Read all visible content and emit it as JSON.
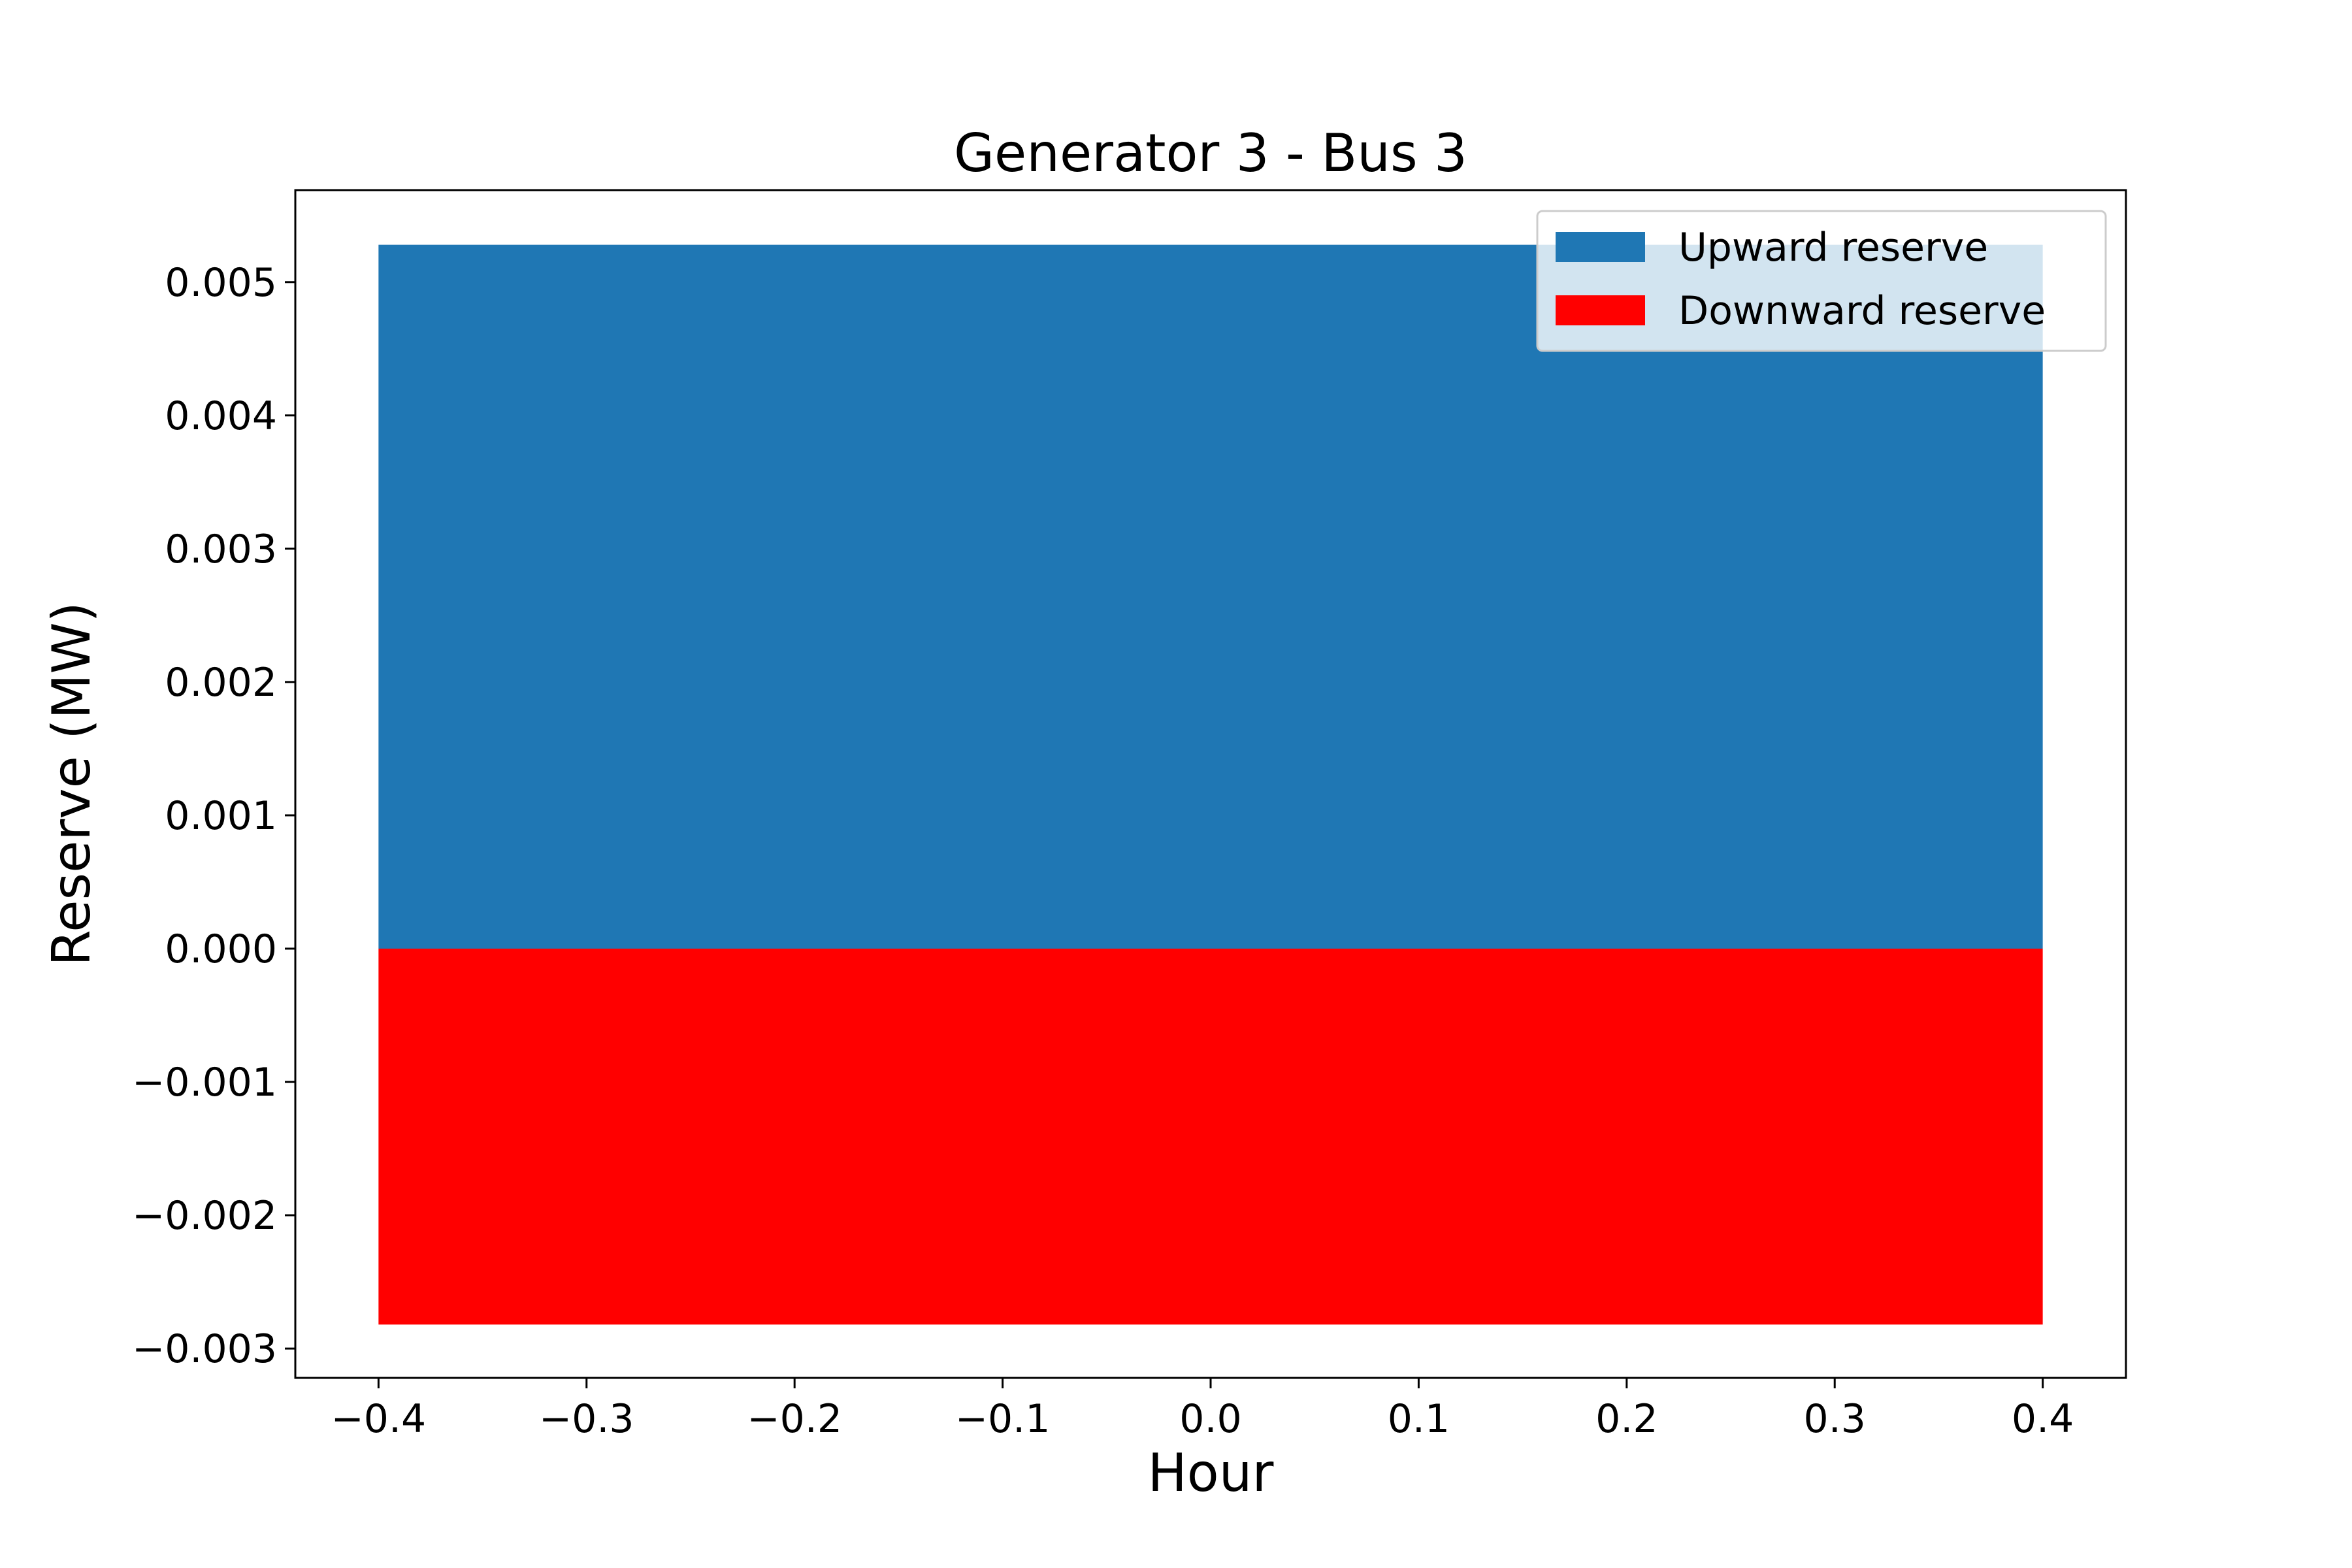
{
  "chart_data": {
    "type": "bar",
    "title": "Generator 3 - Bus 3",
    "xlabel": "Hour",
    "ylabel": "Reserve (MW)",
    "x": [
      0
    ],
    "bar_width": 0.8,
    "series": [
      {
        "name": "Upward reserve",
        "values": [
          0.00528
        ],
        "color": "#1f77b4"
      },
      {
        "name": "Downward reserve",
        "values": [
          -0.00282
        ],
        "color": "#ff0000"
      }
    ],
    "xlim": [
      -0.44,
      0.44
    ],
    "ylim": [
      -0.00322,
      0.00569
    ],
    "xticks": [
      -0.4,
      -0.3,
      -0.2,
      -0.1,
      0.0,
      0.1,
      0.2,
      0.3,
      0.4
    ],
    "xtick_labels": [
      "−0.4",
      "−0.3",
      "−0.2",
      "−0.1",
      "0.0",
      "0.1",
      "0.2",
      "0.3",
      "0.4"
    ],
    "yticks": [
      -0.003,
      -0.002,
      -0.001,
      0.0,
      0.001,
      0.002,
      0.003,
      0.004,
      0.005
    ],
    "ytick_labels": [
      "−0.003",
      "−0.002",
      "−0.001",
      "0.000",
      "0.001",
      "0.002",
      "0.003",
      "0.004",
      "0.005"
    ],
    "legend_position": "top-right",
    "grid": false
  }
}
